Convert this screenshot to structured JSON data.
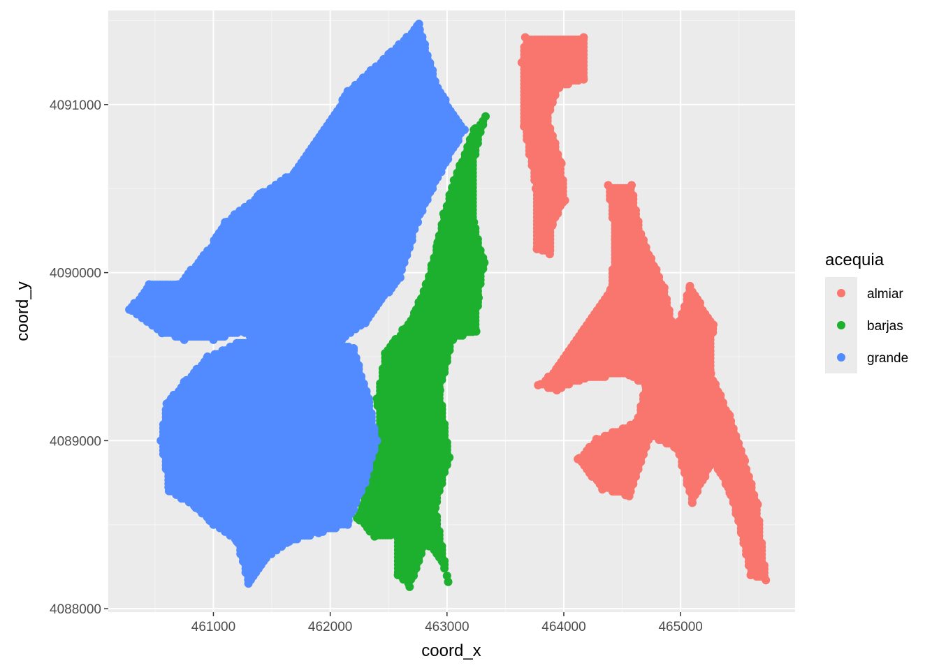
{
  "chart_data": {
    "type": "scatter",
    "xlabel": "coord_x",
    "ylabel": "coord_y",
    "xlim": [
      460100,
      465980
    ],
    "ylim": [
      4087980,
      4091560
    ],
    "x_ticks": [
      461000,
      462000,
      463000,
      464000,
      465000
    ],
    "x_tick_labels": [
      "461000",
      "462000",
      "463000",
      "464000",
      "465000"
    ],
    "y_ticks": [
      4088000,
      4089000,
      4090000,
      4091000
    ],
    "y_tick_labels": [
      "4088000",
      "4089000",
      "4090000",
      "4091000"
    ],
    "grid": true,
    "legend": {
      "title": "acequia",
      "position": "right"
    },
    "point_spacing": 22,
    "series": [
      {
        "name": "almiar",
        "color": "#F8766D",
        "regions": [
          [
            [
              463670,
              4091400
            ],
            [
              464170,
              4091400
            ],
            [
              464170,
              4091150
            ],
            [
              463960,
              4091100
            ],
            [
              463860,
              4090920
            ],
            [
              463980,
              4090650
            ],
            [
              464010,
              4090430
            ],
            [
              463900,
              4090280
            ],
            [
              463880,
              4090110
            ],
            [
              463770,
              4090140
            ],
            [
              463760,
              4090500
            ],
            [
              463660,
              4090870
            ],
            [
              463640,
              4091250
            ]
          ],
          [
            [
              464380,
              4090520
            ],
            [
              464580,
              4090520
            ],
            [
              464660,
              4090230
            ],
            [
              464860,
              4089910
            ],
            [
              464950,
              4089630
            ],
            [
              465080,
              4089920
            ],
            [
              465280,
              4089690
            ],
            [
              465260,
              4089400
            ],
            [
              465420,
              4089150
            ],
            [
              465550,
              4088880
            ],
            [
              465660,
              4088620
            ],
            [
              465730,
              4088170
            ],
            [
              465600,
              4088200
            ],
            [
              465520,
              4088450
            ],
            [
              465420,
              4088690
            ],
            [
              465280,
              4088880
            ],
            [
              465100,
              4088630
            ],
            [
              464970,
              4088950
            ],
            [
              464740,
              4089030
            ],
            [
              464560,
              4088670
            ],
            [
              464330,
              4088710
            ],
            [
              464120,
              4088890
            ],
            [
              464280,
              4089010
            ],
            [
              464620,
              4089110
            ],
            [
              464700,
              4089330
            ],
            [
              464560,
              4089390
            ],
            [
              464180,
              4089370
            ],
            [
              463940,
              4089300
            ],
            [
              463780,
              4089330
            ],
            [
              463940,
              4089430
            ],
            [
              464170,
              4089660
            ],
            [
              464400,
              4089900
            ],
            [
              464440,
              4090200
            ]
          ]
        ]
      },
      {
        "name": "barjas",
        "color": "#1CB02E",
        "regions": [
          [
            [
              463330,
              4090930
            ],
            [
              463230,
              4090850
            ],
            [
              463060,
              4090550
            ],
            [
              462970,
              4090350
            ],
            [
              462920,
              4090180
            ],
            [
              462820,
              4089930
            ],
            [
              462720,
              4089760
            ],
            [
              462620,
              4089660
            ],
            [
              462470,
              4089520
            ],
            [
              462400,
              4089250
            ],
            [
              462430,
              4089000
            ],
            [
              462350,
              4088800
            ],
            [
              462230,
              4088540
            ],
            [
              462380,
              4088430
            ],
            [
              462560,
              4088440
            ],
            [
              462580,
              4088200
            ],
            [
              462680,
              4088130
            ],
            [
              462820,
              4088390
            ],
            [
              462960,
              4088280
            ],
            [
              463010,
              4088160
            ],
            [
              462900,
              4088600
            ],
            [
              463020,
              4088900
            ],
            [
              462940,
              4089300
            ],
            [
              463050,
              4089600
            ],
            [
              463250,
              4089650
            ],
            [
              463270,
              4089850
            ],
            [
              463320,
              4090060
            ],
            [
              463230,
              4090300
            ],
            [
              463220,
              4090640
            ]
          ]
        ]
      },
      {
        "name": "grande",
        "color": "#528BFF",
        "regions": [
          [
            [
              462760,
              4091480
            ],
            [
              462500,
              4091300
            ],
            [
              462150,
              4091080
            ],
            [
              461950,
              4090850
            ],
            [
              461700,
              4090600
            ],
            [
              461400,
              4090470
            ],
            [
              461100,
              4090300
            ],
            [
              460950,
              4090130
            ],
            [
              460700,
              4089930
            ],
            [
              460450,
              4089930
            ],
            [
              460280,
              4089780
            ],
            [
              460560,
              4089640
            ],
            [
              460750,
              4089600
            ],
            [
              461000,
              4089600
            ],
            [
              461250,
              4089650
            ],
            [
              461550,
              4089500
            ],
            [
              461700,
              4089400
            ],
            [
              461800,
              4089520
            ],
            [
              461950,
              4089450
            ],
            [
              462100,
              4089600
            ],
            [
              462300,
              4089700
            ],
            [
              462600,
              4089970
            ],
            [
              462750,
              4090300
            ],
            [
              462950,
              4090600
            ],
            [
              463150,
              4090850
            ],
            [
              462920,
              4091100
            ]
          ],
          [
            [
              460600,
              4089220
            ],
            [
              460550,
              4089000
            ],
            [
              460620,
              4088700
            ],
            [
              460850,
              4088600
            ],
            [
              461000,
              4088500
            ],
            [
              461200,
              4088400
            ],
            [
              461300,
              4088150
            ],
            [
              461450,
              4088300
            ],
            [
              461650,
              4088400
            ],
            [
              461900,
              4088450
            ],
            [
              462150,
              4088500
            ],
            [
              462300,
              4088750
            ],
            [
              462400,
              4089000
            ],
            [
              462330,
              4089250
            ],
            [
              462200,
              4089550
            ],
            [
              461900,
              4089650
            ],
            [
              461700,
              4089550
            ],
            [
              461500,
              4089600
            ],
            [
              461200,
              4089580
            ],
            [
              460950,
              4089500
            ],
            [
              460750,
              4089350
            ]
          ]
        ]
      }
    ]
  }
}
